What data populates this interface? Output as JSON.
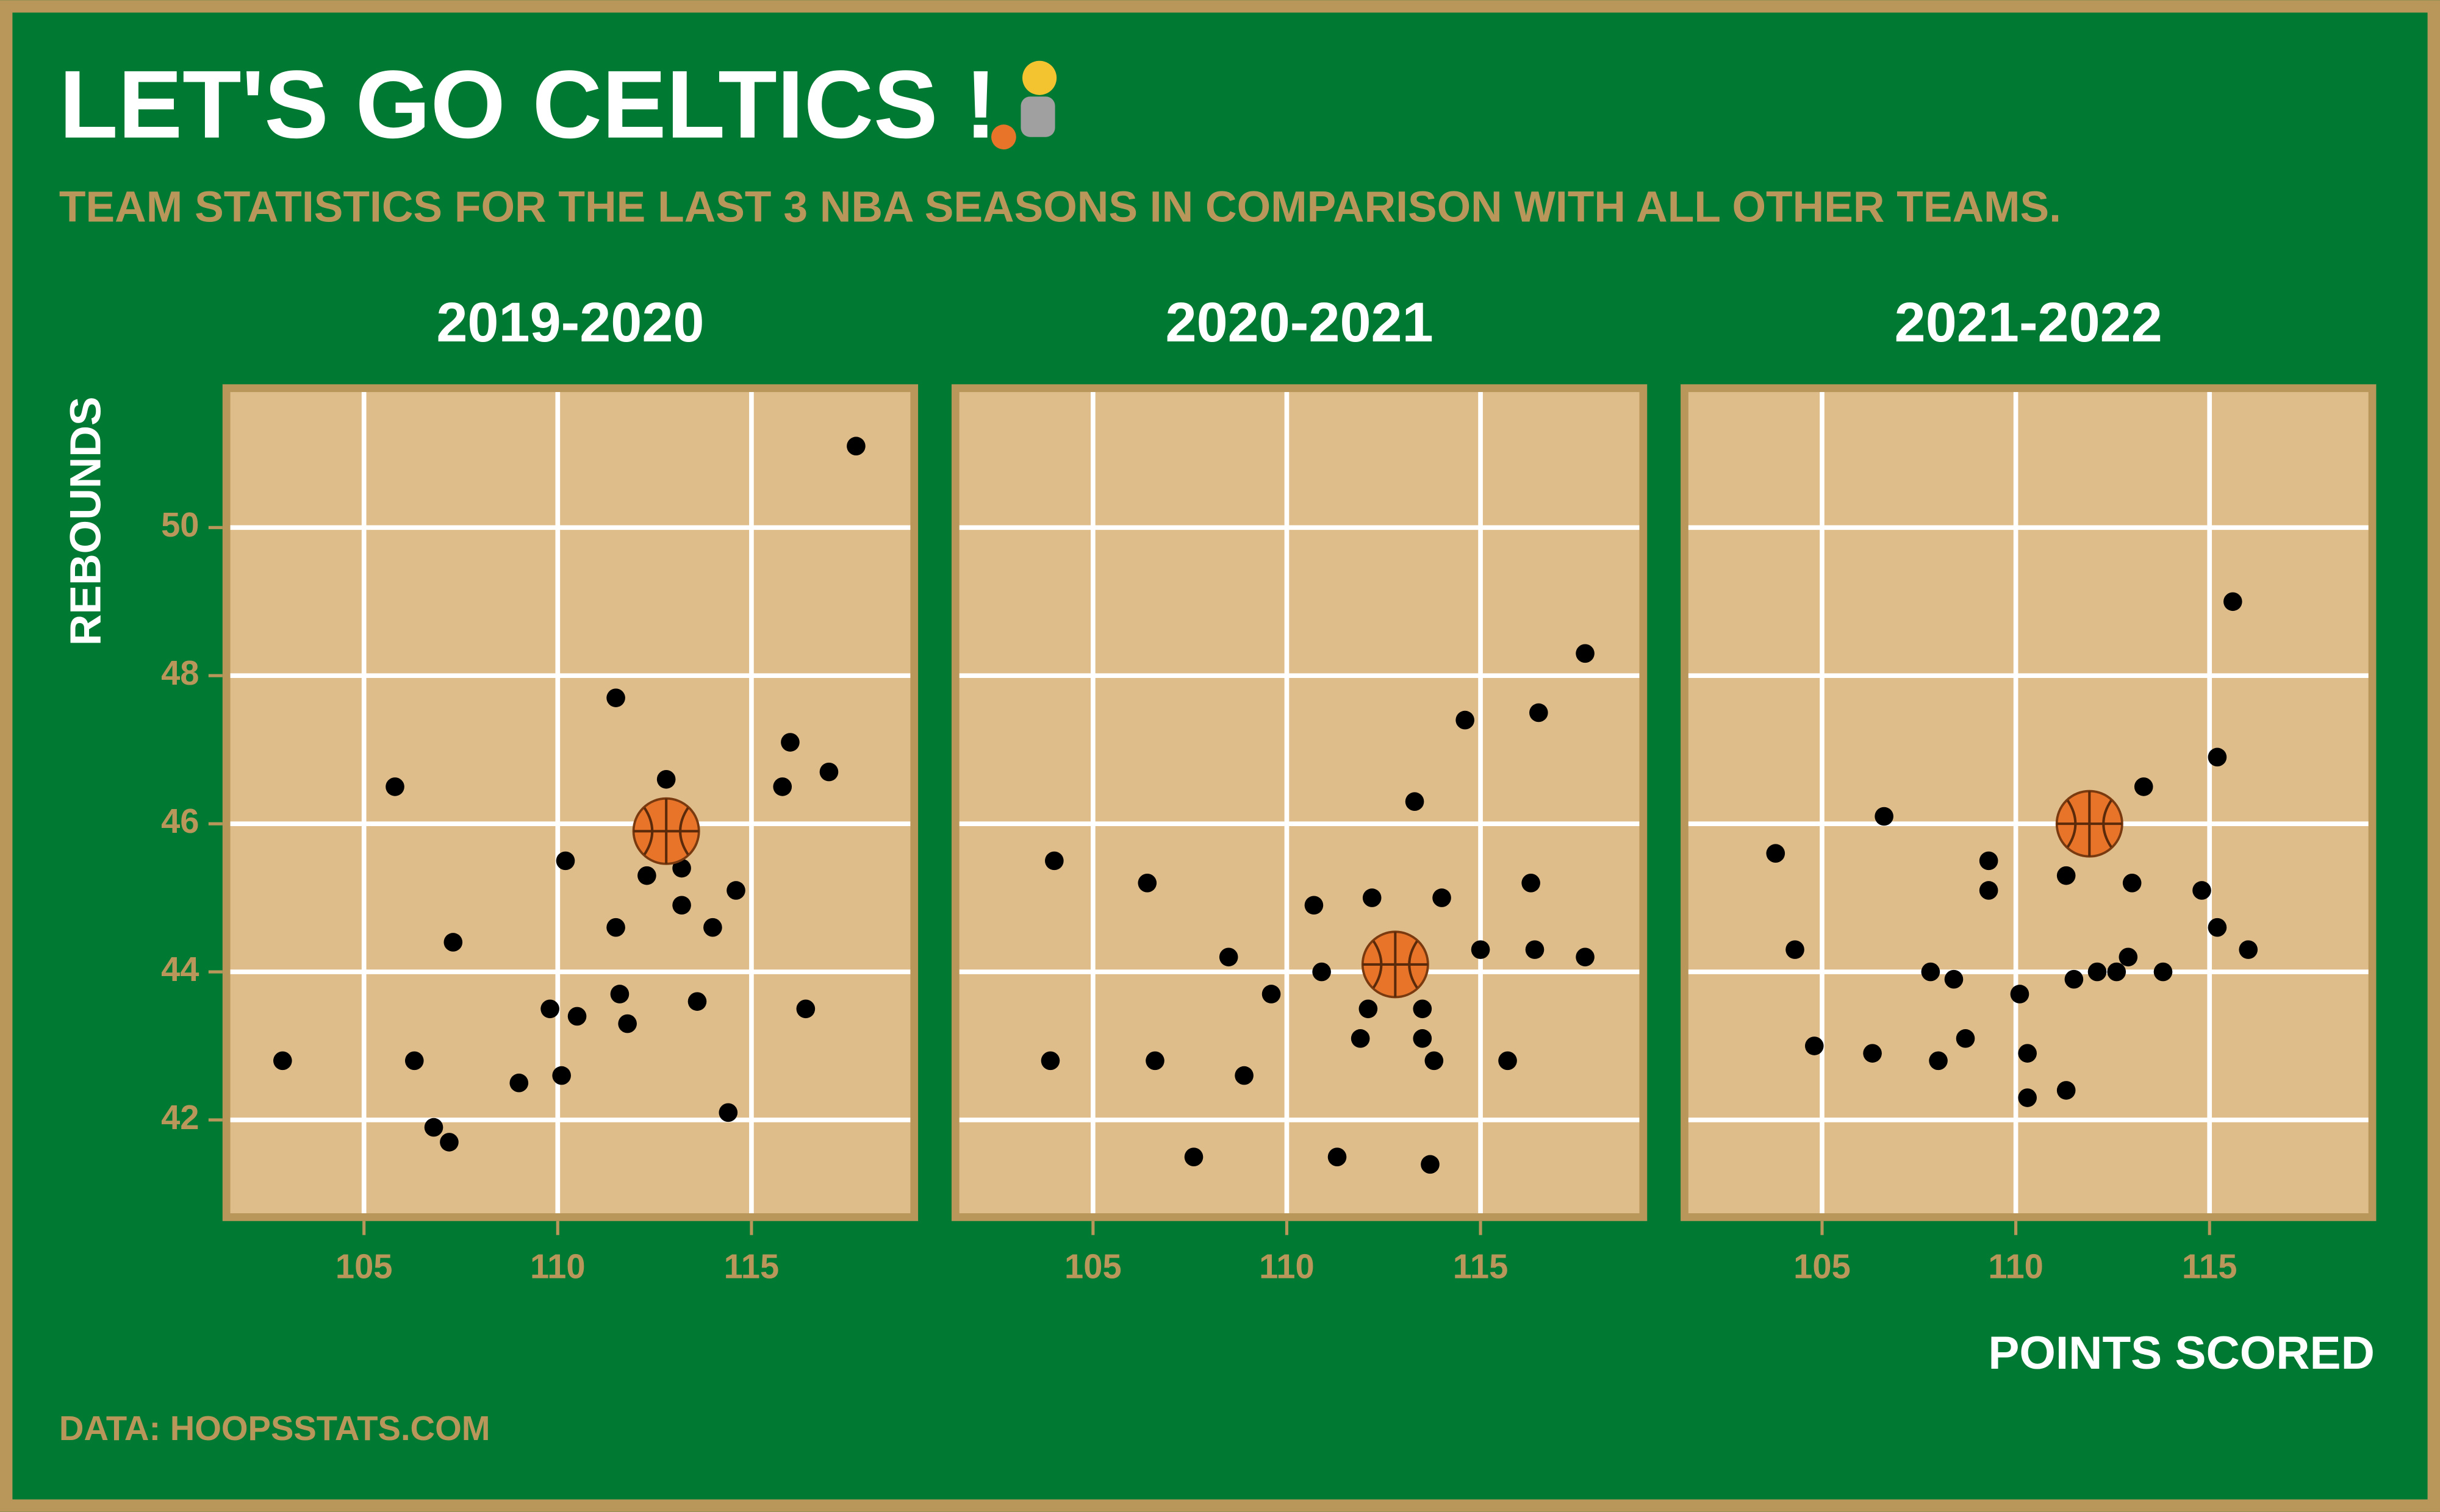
{
  "title": "LET'S GO CELTICS !",
  "subtitle": "TEAM STATISTICS FOR THE LAST 3 NBA SEASONS IN COMPARISON WITH ALL OTHER TEAMS.",
  "y_label": "REBOUNDS",
  "x_label": "POINTS SCORED",
  "caption": "DATA: HOOPSSTATS.COM",
  "chart_data": [
    {
      "type": "scatter",
      "title": "2019-2020",
      "xlim": [
        101.55,
        119.1
      ],
      "ylim": [
        40.74,
        51.83
      ],
      "xticks": [
        105,
        110,
        115
      ],
      "yticks": [
        42,
        44,
        46,
        48,
        50
      ],
      "grid": true,
      "series": [
        {
          "color": "#000000",
          "x": [
            102.9,
            105.8,
            106.3,
            106.8,
            107.2,
            107.3,
            109.0,
            109.8,
            110.1,
            110.2,
            110.5,
            111.5,
            111.5,
            111.6,
            111.8,
            112.3,
            112.8,
            113.2,
            113.2,
            113.6,
            114.0,
            114.4,
            114.6,
            115.8,
            116.0,
            116.4,
            117.0,
            117.7
          ],
          "values": [
            42.8,
            46.5,
            42.8,
            41.9,
            41.7,
            44.4,
            42.5,
            43.5,
            42.6,
            45.5,
            43.4,
            47.7,
            44.6,
            43.7,
            43.3,
            45.3,
            46.6,
            45.4,
            44.9,
            43.6,
            44.6,
            42.1,
            45.1,
            46.5,
            47.1,
            43.5,
            46.7,
            51.1
          ]
        },
        {
          "marker": "basketball",
          "x": [
            112.8
          ],
          "values": [
            45.9
          ]
        }
      ]
    },
    {
      "type": "scatter",
      "title": "2020-2021",
      "xlim": [
        101.55,
        119.1
      ],
      "ylim": [
        40.74,
        51.83
      ],
      "xticks": [
        105,
        110,
        115
      ],
      "yticks": [
        42,
        44,
        46,
        48,
        50
      ],
      "grid": true,
      "series": [
        {
          "color": "#000000",
          "x": [
            103.9,
            104.0,
            106.4,
            106.6,
            107.6,
            108.5,
            108.9,
            109.6,
            110.7,
            110.9,
            111.3,
            111.9,
            112.1,
            112.2,
            113.3,
            113.5,
            113.5,
            113.8,
            113.7,
            114.0,
            114.6,
            115.0,
            115.7,
            116.3,
            116.4,
            116.5,
            117.7,
            117.7
          ],
          "values": [
            42.8,
            45.5,
            45.2,
            42.8,
            41.5,
            44.2,
            42.6,
            43.7,
            44.9,
            44.0,
            41.5,
            43.1,
            43.5,
            45.0,
            46.3,
            43.5,
            43.1,
            42.8,
            41.4,
            45.0,
            47.4,
            44.3,
            42.8,
            45.2,
            44.3,
            47.5,
            44.2,
            48.3
          ]
        },
        {
          "marker": "basketball",
          "x": [
            112.8
          ],
          "values": [
            44.1
          ]
        }
      ]
    },
    {
      "type": "scatter",
      "title": "2021-2022",
      "xlim": [
        101.55,
        119.1
      ],
      "ylim": [
        40.74,
        51.83
      ],
      "xticks": [
        105,
        110,
        115
      ],
      "yticks": [
        42,
        44,
        46,
        48,
        50
      ],
      "grid": true,
      "series": [
        {
          "color": "#000000",
          "x": [
            103.8,
            104.3,
            104.8,
            106.3,
            106.6,
            107.8,
            108.0,
            108.4,
            108.7,
            109.3,
            109.3,
            110.1,
            110.3,
            110.3,
            111.3,
            111.3,
            111.5,
            112.1,
            112.6,
            112.9,
            113.0,
            113.3,
            113.8,
            114.8,
            115.2,
            115.2,
            115.6,
            116.0
          ],
          "values": [
            45.6,
            44.3,
            43.0,
            42.9,
            46.1,
            44.0,
            42.8,
            43.9,
            43.1,
            45.5,
            45.1,
            43.7,
            42.9,
            42.3,
            45.3,
            42.4,
            43.9,
            44.0,
            44.0,
            44.2,
            45.2,
            46.5,
            44.0,
            45.1,
            46.9,
            44.6,
            49.0,
            44.3
          ]
        },
        {
          "marker": "basketball",
          "x": [
            111.9
          ],
          "values": [
            46.0
          ]
        }
      ]
    }
  ]
}
